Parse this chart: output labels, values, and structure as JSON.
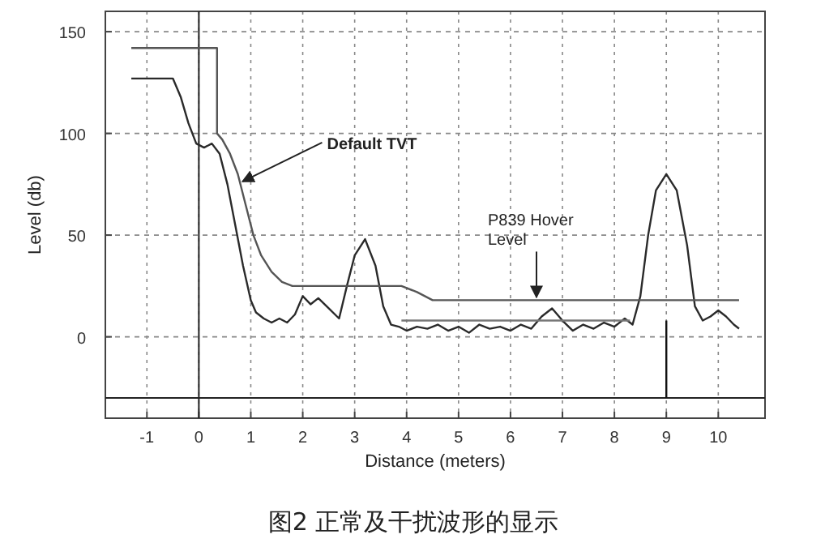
{
  "chart_data": {
    "type": "line",
    "xlabel": "Distance (meters)",
    "ylabel": "Level (db)",
    "xlim": [
      -1.8,
      10.9
    ],
    "ylim": [
      -40,
      160
    ],
    "xticks": [
      -1,
      0,
      1,
      2,
      3,
      4,
      5,
      6,
      7,
      8,
      9,
      10
    ],
    "yticks": [
      0,
      50,
      100,
      150
    ],
    "grid": true,
    "marker": "none",
    "line_style": "solid",
    "series": [
      {
        "color": "#2a2a2a",
        "x": [
          -1.3,
          -0.5,
          -0.35,
          -0.2,
          -0.05,
          0.1,
          0.25,
          0.4,
          0.55,
          0.7,
          0.85,
          1.0,
          1.1,
          1.25,
          1.4,
          1.55,
          1.7,
          1.85,
          2.0,
          2.15,
          2.3,
          2.5,
          2.7,
          2.85,
          3.0,
          3.2,
          3.4,
          3.55,
          3.7,
          3.85,
          4.0,
          4.2,
          4.4,
          4.6,
          4.8,
          5.0,
          5.2,
          5.4,
          5.6,
          5.8,
          6.0,
          6.2,
          6.4,
          6.6,
          6.8,
          7.0,
          7.2,
          7.4,
          7.6,
          7.8,
          8.0,
          8.2,
          8.35,
          8.5,
          8.65,
          8.8,
          9.0,
          9.2,
          9.4,
          9.55,
          9.7,
          9.85,
          10.0,
          10.15,
          10.3,
          10.4
        ],
        "values": [
          127,
          127,
          118,
          105,
          95,
          93,
          95,
          90,
          75,
          55,
          35,
          18,
          12,
          9,
          7,
          9,
          7,
          11,
          20,
          16,
          19,
          14,
          9,
          25,
          40,
          48,
          35,
          15,
          6,
          5,
          3,
          5,
          4,
          6,
          3,
          5,
          2,
          6,
          4,
          5,
          3,
          6,
          4,
          10,
          14,
          8,
          3,
          6,
          4,
          7,
          5,
          9,
          6,
          20,
          50,
          72,
          80,
          72,
          45,
          15,
          8,
          10,
          13,
          10,
          6,
          4
        ]
      },
      {
        "color": "#555555",
        "x": [
          -1.3,
          0.35,
          0.35,
          0.45,
          0.6,
          0.75,
          0.9,
          1.05,
          1.2,
          1.4,
          1.6,
          1.8,
          3.9,
          4.2,
          4.5,
          10.4
        ],
        "values": [
          142,
          142,
          100,
          97,
          90,
          80,
          65,
          50,
          40,
          32,
          27,
          25,
          25,
          22,
          18,
          18
        ]
      },
      {
        "color": "#777777",
        "x": [
          3.9,
          8.3
        ],
        "values": [
          8,
          8
        ]
      },
      {
        "color": "#111111",
        "x": [
          9,
          9
        ],
        "values": [
          8,
          -30
        ]
      }
    ],
    "ref_lines": [
      {
        "axis": "x",
        "value": 0,
        "color": "#222222"
      },
      {
        "axis": "y",
        "value": -30,
        "color": "#222222"
      }
    ],
    "annotations": [
      {
        "text": "Default TVT",
        "x": 0.75,
        "y": 78
      },
      {
        "text": "P839 Hover Level",
        "x": 6.5,
        "y": 18
      },
      "图2 正常及干扰波形的显示"
    ]
  }
}
